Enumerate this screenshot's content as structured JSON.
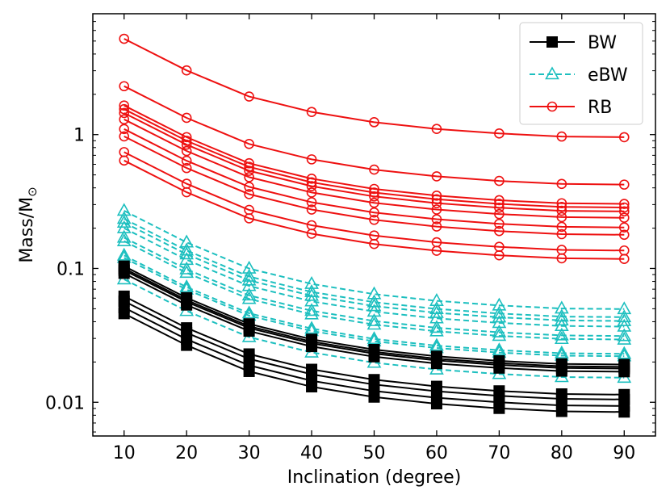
{
  "chart_data": {
    "type": "line",
    "title": "",
    "xlabel": "Inclination (degree)",
    "ylabel_main": "Mass/M",
    "ylabel_sub": "⊙",
    "yscale": "log",
    "xlim": [
      5,
      95
    ],
    "ylim": [
      0.0056,
      8.0
    ],
    "x_ticks": [
      10,
      20,
      30,
      40,
      50,
      60,
      70,
      80,
      90
    ],
    "y_ticks": [
      {
        "value": 0.01,
        "label": "0.01"
      },
      {
        "value": 0.1,
        "label": "0.1"
      },
      {
        "value": 1,
        "label": "1"
      }
    ],
    "x": [
      10,
      20,
      30,
      40,
      50,
      60,
      70,
      80,
      90
    ],
    "legend": {
      "placement": "top-right",
      "entries": [
        {
          "label": "BW",
          "group": "BW"
        },
        {
          "label": "eBW",
          "group": "eBW"
        },
        {
          "label": "RB",
          "group": "RB"
        }
      ]
    },
    "groups": [
      {
        "name": "BW",
        "color": "#000000",
        "line_style": "solid",
        "marker": "filled-square",
        "base_values_at_10": [
          0.046,
          0.051,
          0.057,
          0.062,
          0.092,
          0.097,
          0.1,
          0.104
        ]
      },
      {
        "name": "eBW",
        "color": "#1cbfbf",
        "line_style": "dashed",
        "marker": "open-triangle",
        "base_values_at_10": [
          0.083,
          0.12,
          0.125,
          0.16,
          0.17,
          0.2,
          0.22,
          0.235,
          0.27
        ]
      },
      {
        "name": "RB",
        "color": "#ee1111",
        "line_style": "solid",
        "marker": "open-circle",
        "base_values_at_10": [
          0.64,
          0.74,
          0.97,
          1.1,
          1.3,
          1.45,
          1.55,
          1.65,
          2.3,
          5.2
        ]
      }
    ],
    "inclination_scale_factors": [
      1.0,
      0.58,
      0.37,
      0.284,
      0.238,
      0.212,
      0.196,
      0.186,
      0.184
    ]
  }
}
